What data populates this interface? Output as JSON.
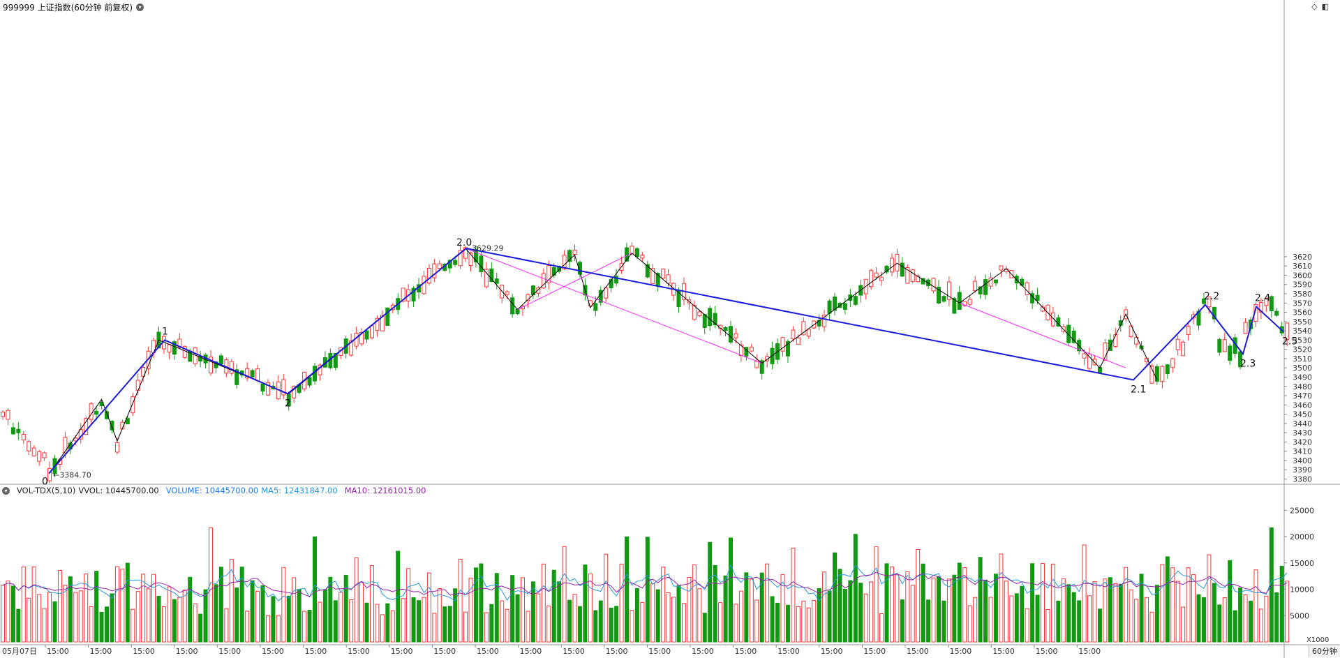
{
  "title": "999999 上证指数(60分钟 前复权)",
  "period_tab": "60分钟",
  "vol_header": {
    "name": "VOL-TDX(5,10)",
    "vvol": "VVOL: 10445700.00",
    "volume": "VOLUME: 10445700.00",
    "ma5": "MA5: 12431847.00",
    "ma10": "MA10: 12161015.00"
  },
  "colors": {
    "up": "#ff3333",
    "down": "#119911",
    "wave": "#1a1adf",
    "zigzag": "#000000",
    "channel": "#ff22ff",
    "vol": "#2277ee",
    "ma5": "#2299dd",
    "ma10": "#9922aa"
  },
  "chart_data": {
    "type": "candlestick",
    "price_axis": {
      "ticks": [
        3380,
        3390,
        3400,
        3410,
        3420,
        3430,
        3440,
        3450,
        3460,
        3470,
        3480,
        3490,
        3500,
        3510,
        3520,
        3530,
        3540,
        3550,
        3560,
        3570,
        3580,
        3590,
        3600,
        3610,
        3620
      ]
    },
    "volume_axis": {
      "ticks": [
        5000,
        10000,
        15000,
        20000,
        25000
      ],
      "unit_label": "X1000"
    },
    "x_labels": [
      "05月07日",
      "15:00",
      "15:00",
      "15:00",
      "15:00",
      "15:00",
      "15:00",
      "15:00",
      "15:00",
      "15:00",
      "15:00",
      "15:00",
      "15:00",
      "15:00",
      "15:00",
      "15:00",
      "15:00",
      "15:00",
      "15:00",
      "15:00",
      "15:00",
      "15:00",
      "15:00",
      "15:00",
      "15:00",
      "15:00"
    ],
    "annotations": [
      {
        "text": "←3384.70"
      },
      {
        "text": "3629.29"
      }
    ],
    "wave_points": [
      {
        "label": "0",
        "price": 3386
      },
      {
        "label": "1",
        "price": 3530
      },
      {
        "label": "2",
        "price": 3472
      },
      {
        "label": "2.0",
        "price": 3629
      },
      {
        "label": "2.1",
        "price": 3487
      },
      {
        "label": "2.2",
        "price": 3568
      },
      {
        "label": "2.3",
        "price": 3515
      },
      {
        "label": "2.4",
        "price": 3566
      },
      {
        "label": "2.5",
        "price": 3539
      }
    ],
    "zigzag_prices": [
      3386,
      3466,
      3421,
      3530,
      3472,
      3629,
      3563,
      3622,
      3565,
      3624,
      3505,
      3613,
      3570,
      3607,
      3500,
      3558,
      3487
    ]
  }
}
